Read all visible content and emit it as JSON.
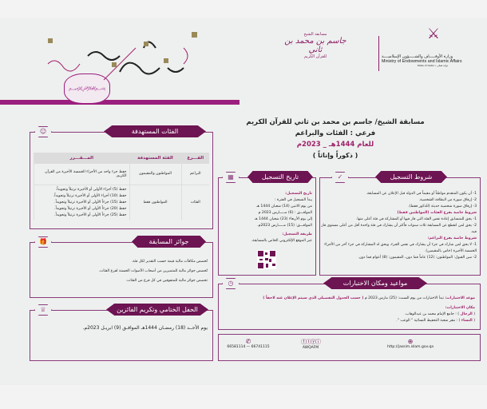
{
  "header": {
    "ministry_ar": "وزارة الأوقـــــاف والشـــــؤون الإسلاميــــة",
    "ministry_en": "Ministry of Endowments and Islamic Affairs",
    "state": "State of Qatar • دولـة قطـر",
    "competition_top": "مسابقة الشيخ",
    "competition_name": "جاسم بن محمد بن ثاني",
    "competition_bottom": "للقرآن الكريم"
  },
  "title": {
    "line1": "مسابقة الشيخ/ جاسم بن محمد بن ثاني للقرآن الكريم",
    "line2": "فرعي : الفئات والبراعم",
    "line3": "للعام 1444هـ _ 2023م",
    "line4": "( ذكوراً وإناثاً )"
  },
  "conditions": {
    "title": "شروط التسجيل",
    "items": [
      "1- أن يكون المتقدم مواطناً أو مقيماً في الدولة قبل الإعلان عن المسابقة.",
      "2- إرفاق صورة من البطاقة الشخصية.",
      "3- إرفاق صورة شخصية حديثة (للذكور فقط)."
    ],
    "cat_title": "شروط خاصة بفرع الفئات (المواطنين فقط)",
    "cat_items": [
      "1- يحق للمتسابق إعادة نفس الفئة التي فاز فيها أو المشاركة في فئة أعلى منها.",
      "2- يحق لمن انقطع عن المسابقة ثلاث سنوات فأكثر أن يشارك في فئة واحدة أقل من أعلى مستوى فاز فيه."
    ],
    "bud_title": "شروط خاصة بفرع البراعم:",
    "bud_items": [
      "1- لا يحق لمن شارك في جزء أن يشارك في نفس الجزء، ويحق له المشاركة في جزء آخر من الأجزاء الخمسة الأخيرة (خاص بالمقيمين).",
      "2- سن القبول: المواطنون: (12) عاماً فما دون، المقيمون: (8) أعوام فما دون."
    ]
  },
  "registration": {
    "title": "تاريخ التسجيل",
    "date_label": "تاريخ التسجيل:",
    "date_lines": [
      "يبدأ التسجيل في الفترة :",
      "من يوم الاثنين (14) شعبان 1444 هـ",
      "الموافـــق : (6) مـــــارس 2023 م",
      "إلى يوم الأربعاء (23) شعبان 1444 هـ",
      "الموافـــق: (15) مـــــارس 2023م."
    ],
    "method_label": "طريقة التسجيل:",
    "method_text": "عبر الموقع الإلكتروني الخاص بالمسابقة."
  },
  "categories": {
    "title": "الفئات المستهدفة",
    "columns": [
      "الفـــرع",
      "الفئة المستهدفة",
      "المـــقـــرر"
    ],
    "rows": [
      {
        "branch": "البراعم",
        "target": "المواطنون والمقيمون",
        "syllabus": [
          "حفظ جزء واحد من الأجزاء الخمسة الأخيرة من القرآن الكريم."
        ]
      },
      {
        "branch": "الفئات",
        "target": "المواطنون فقط",
        "syllabus": [
          "حفظ (5) أجزاء الأولى أو الأخيرة ترتيلاً وتجويداً.",
          "حفظ (10) أجزاء الأولى أو الأخيرة ترتيلاً وتجويداً.",
          "حفظ (15) جزءاً الأولى أو الأخيرة ترتيلاً وتجويداً.",
          "حفظ (20) جزءاً الأولى أو الأخيرة ترتيلاً وتجويداً.",
          "حفظ (25) جزءاً الأولى أو الأخيرة ترتيلاً وتجويداً."
        ]
      }
    ]
  },
  "prizes": {
    "title": "جوائز المسابقة",
    "items": [
      "تُخصص مكافآت مالية قيمة حسب التقدير لكل فئة.",
      "تُخصص جوائز مالية للمتميزين من أصحاب الأصوات الحسنة لفرع الفئات.",
      "تخصص جوائز مالية للمتفوقين في كل فرع من الفئات."
    ]
  },
  "ceremony": {
    "title": "الحفل الختامي وتكريم الفائزين",
    "text": "يوم الأحــد (18) رمضـان 1444هـ الموافـق (9) ابريـل 2023م."
  },
  "exams": {
    "title": "مواعيد ومكان الاختبارات",
    "date_label": "موعد الاختبارات:",
    "date_text": "تبدأ الاختبارات من يوم السبت: (25) مارس 2023 م",
    "date_note": "( حسب الجدول التفصيلي الذي سيتم الإعلان عنه لاحقاً )",
    "place_label": "مكان الاختبارات:",
    "men_label": "الرجال",
    "men_text": ": جامع الإمام محمد بن عبدالوهاب.",
    "women_label": "النساء",
    "women_text": ": مقر شعبة التحفيظ النسائية \" الوعب \"."
  },
  "footer": {
    "website": "http://jassim.islam.gov.qa",
    "social": "AWQAFM",
    "phones": "66581114 — 66741115"
  },
  "colors": {
    "accent": "#6d1452",
    "highlight": "#a0226a",
    "border": "#8a3a7a"
  }
}
